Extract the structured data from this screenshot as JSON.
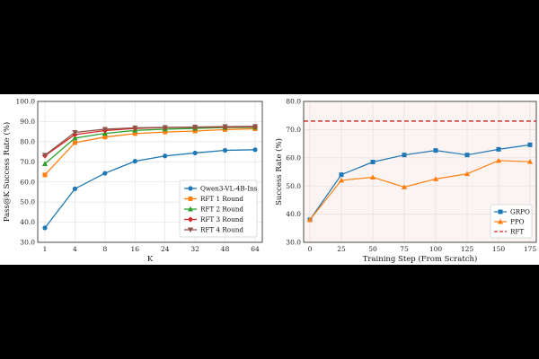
{
  "chart_data": [
    {
      "type": "line",
      "title": "",
      "xlabel": "K",
      "ylabel": "Pass@K Success Rate (%)",
      "categories": [
        "1",
        "4",
        "8",
        "16",
        "24",
        "32",
        "48",
        "64"
      ],
      "ylim": [
        30,
        100
      ],
      "yticks": [
        "30.0",
        "40.0",
        "50.0",
        "60.0",
        "70.0",
        "80.0",
        "90.0",
        "100.0"
      ],
      "grid": true,
      "legend": "bottom-right",
      "series": [
        {
          "name": "Qwen3-VL-4B-Ins",
          "color": "#1f77b4",
          "marker": "circle",
          "values": [
            37.2,
            56.6,
            64.3,
            70.3,
            72.9,
            74.4,
            75.7,
            76.0
          ]
        },
        {
          "name": "RFT 1 Round",
          "color": "#ff7f0e",
          "marker": "square",
          "values": [
            63.5,
            79.5,
            82.3,
            84.0,
            84.8,
            85.3,
            86.0,
            86.4
          ]
        },
        {
          "name": "RFT 2 Round",
          "color": "#2ca02c",
          "marker": "triangle-up",
          "values": [
            69.0,
            81.8,
            84.1,
            85.6,
            86.2,
            86.6,
            87.0,
            87.1
          ]
        },
        {
          "name": "RFT 3 Round",
          "color": "#d62728",
          "marker": "diamond",
          "values": [
            73.0,
            83.5,
            85.5,
            86.6,
            87.0,
            87.2,
            87.3,
            87.4
          ]
        },
        {
          "name": "RFT 4 Round",
          "color": "#8c564b",
          "marker": "triangle-down",
          "values": [
            73.3,
            84.6,
            86.2,
            86.9,
            87.1,
            87.3,
            87.5,
            87.6
          ]
        }
      ]
    },
    {
      "type": "line",
      "title": "",
      "xlabel": "Training Step (From Scratch)",
      "ylabel": "Success Rate (%)",
      "x": [
        0,
        25,
        50,
        75,
        100,
        125,
        150,
        175
      ],
      "xlim": [
        -5,
        180
      ],
      "xticks": [
        "0",
        "25",
        "50",
        "75",
        "100",
        "125",
        "150",
        "175"
      ],
      "ylim": [
        30,
        80
      ],
      "yticks": [
        "30.0",
        "40.0",
        "50.0",
        "60.0",
        "70.0",
        "80.0"
      ],
      "grid": true,
      "legend": "bottom-right",
      "series": [
        {
          "name": "GRPO",
          "color": "#1f77b4",
          "marker": "square",
          "values": [
            38.0,
            54.0,
            58.5,
            61.0,
            62.6,
            61.0,
            63.0,
            64.6
          ]
        },
        {
          "name": "PPO",
          "color": "#ff7f0e",
          "marker": "triangle-up",
          "values": [
            38.0,
            52.0,
            53.1,
            49.6,
            52.5,
            54.3,
            59.0,
            58.6
          ]
        },
        {
          "name": "RFT",
          "color": "#d62728",
          "marker": "dashed-line",
          "values": [
            73.0,
            73.0,
            73.0,
            73.0,
            73.0,
            73.0,
            73.0,
            73.0
          ]
        }
      ]
    }
  ]
}
